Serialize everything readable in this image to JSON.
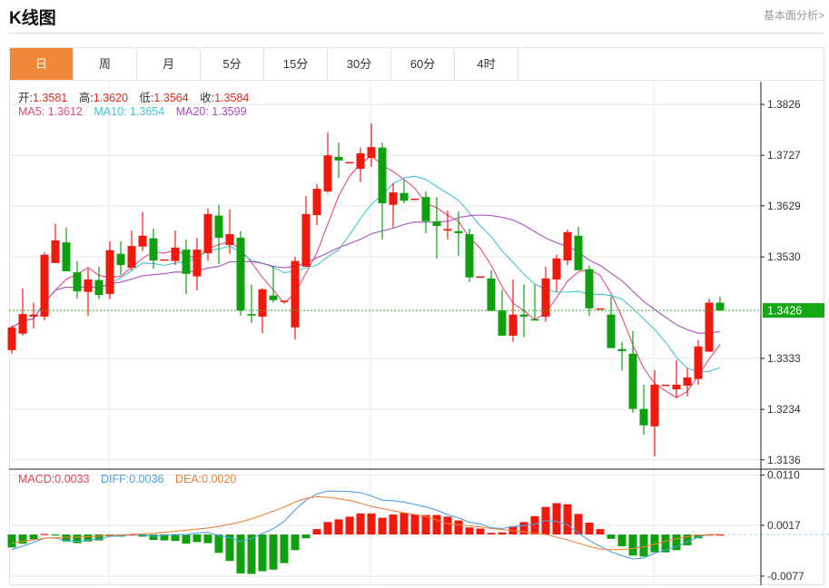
{
  "header": {
    "title": "K线图",
    "link": "基本面分析>"
  },
  "tabs": [
    {
      "label": "日",
      "active": true
    },
    {
      "label": "周"
    },
    {
      "label": "月"
    },
    {
      "label": "5分"
    },
    {
      "label": "15分"
    },
    {
      "label": "30分"
    },
    {
      "label": "60分"
    },
    {
      "label": "4时"
    }
  ],
  "info": {
    "open_label": "开:",
    "open": "1.3581",
    "high_label": "高:",
    "high": "1.3620",
    "low_label": "低:",
    "low": "1.3564",
    "close_label": "收:",
    "close": "1.3584",
    "ma5": "MA5: 1.3612",
    "ma10": "MA10: 1.3654",
    "ma20": "MA20: 1.3599"
  },
  "macd_info": {
    "macd": "MACD:0.0033",
    "diff": "DIFF:0.0036",
    "dea": "DEA:0.0020"
  },
  "colors": {
    "up": "#f0190c",
    "down": "#0ea00e",
    "ma5": "#e8477f",
    "ma10": "#45c3d6",
    "ma20": "#a94fc2",
    "diff": "#4d9fe3",
    "dea": "#f0813a",
    "active_tab": "#f0883a",
    "last_price_bg": "#15a815"
  },
  "chart_data": [
    {
      "type": "candlestick",
      "ohlc_order": [
        "open",
        "high",
        "low",
        "close"
      ],
      "candles": [
        [
          1.3349,
          1.3397,
          1.3342,
          1.3393
        ],
        [
          1.3381,
          1.3469,
          1.3377,
          1.3419
        ],
        [
          1.3414,
          1.3441,
          1.3391,
          1.3418
        ],
        [
          1.3414,
          1.3539,
          1.3407,
          1.3534
        ],
        [
          1.3518,
          1.3594,
          1.3518,
          1.3562
        ],
        [
          1.3558,
          1.3587,
          1.3502,
          1.3502
        ],
        [
          1.35,
          1.3522,
          1.3449,
          1.3463
        ],
        [
          1.3462,
          1.3507,
          1.3416,
          1.3486
        ],
        [
          1.3485,
          1.3511,
          1.3448,
          1.3456
        ],
        [
          1.3458,
          1.356,
          1.3448,
          1.3543
        ],
        [
          1.3536,
          1.356,
          1.3495,
          1.3514
        ],
        [
          1.3509,
          1.3581,
          1.3504,
          1.3551
        ],
        [
          1.355,
          1.3617,
          1.3541,
          1.3571
        ],
        [
          1.3566,
          1.3585,
          1.3507,
          1.3523
        ],
        [
          1.3523,
          1.3525,
          1.3523,
          1.3525
        ],
        [
          1.3522,
          1.3581,
          1.3514,
          1.3548
        ],
        [
          1.3544,
          1.3564,
          1.3458,
          1.3497
        ],
        [
          1.3492,
          1.3567,
          1.3465,
          1.3544
        ],
        [
          1.3537,
          1.3624,
          1.3523,
          1.3613
        ],
        [
          1.361,
          1.3631,
          1.3516,
          1.3567
        ],
        [
          1.3553,
          1.3622,
          1.3536,
          1.3574
        ],
        [
          1.3567,
          1.358,
          1.3416,
          1.3426
        ],
        [
          1.3419,
          1.3476,
          1.3402,
          1.3416
        ],
        [
          1.3414,
          1.3469,
          1.3382,
          1.3467
        ],
        [
          1.3455,
          1.3513,
          1.3441,
          1.3446
        ],
        [
          1.3444,
          1.3445,
          1.3444,
          1.3445
        ],
        [
          1.3393,
          1.353,
          1.337,
          1.3522
        ],
        [
          1.3511,
          1.3648,
          1.3511,
          1.3613
        ],
        [
          1.3611,
          1.3671,
          1.3592,
          1.3662
        ],
        [
          1.3657,
          1.3771,
          1.3654,
          1.3727
        ],
        [
          1.3724,
          1.3752,
          1.3683,
          1.3717
        ],
        [
          1.3713,
          1.3714,
          1.3713,
          1.3714
        ],
        [
          1.3701,
          1.3742,
          1.3675,
          1.3731
        ],
        [
          1.3722,
          1.3789,
          1.3705,
          1.3743
        ],
        [
          1.3742,
          1.3752,
          1.3564,
          1.3634
        ],
        [
          1.3631,
          1.3673,
          1.3587,
          1.3655
        ],
        [
          1.3654,
          1.368,
          1.3634,
          1.3639
        ],
        [
          1.3642,
          1.3643,
          1.3642,
          1.3643
        ],
        [
          1.3646,
          1.3657,
          1.3576,
          1.3599
        ],
        [
          1.3599,
          1.3646,
          1.3527,
          1.359
        ],
        [
          1.3581,
          1.362,
          1.3564,
          1.3584
        ],
        [
          1.358,
          1.3618,
          1.3532,
          1.3576
        ],
        [
          1.3574,
          1.3585,
          1.3481,
          1.349
        ],
        [
          1.3491,
          1.3492,
          1.3491,
          1.3492
        ],
        [
          1.3488,
          1.3504,
          1.3425,
          1.3425
        ],
        [
          1.3426,
          1.3467,
          1.3377,
          1.3377
        ],
        [
          1.3377,
          1.3486,
          1.3365,
          1.3418
        ],
        [
          1.3418,
          1.3476,
          1.3374,
          1.3414
        ],
        [
          1.3409,
          1.3476,
          1.3407,
          1.3407
        ],
        [
          1.3414,
          1.3511,
          1.3404,
          1.3488
        ],
        [
          1.3486,
          1.3534,
          1.3462,
          1.3527
        ],
        [
          1.3523,
          1.3583,
          1.3514,
          1.3578
        ],
        [
          1.3571,
          1.3588,
          1.3504,
          1.3504
        ],
        [
          1.3506,
          1.3513,
          1.3416,
          1.343
        ],
        [
          1.3429,
          1.343,
          1.3429,
          1.343
        ],
        [
          1.3418,
          1.3453,
          1.3353,
          1.3353
        ],
        [
          1.3351,
          1.3365,
          1.3309,
          1.3347
        ],
        [
          1.3342,
          1.3386,
          1.3228,
          1.3235
        ],
        [
          1.3235,
          1.3282,
          1.3185,
          1.3203
        ],
        [
          1.3201,
          1.331,
          1.3143,
          1.3282
        ],
        [
          1.3281,
          1.3282,
          1.3281,
          1.3282
        ],
        [
          1.3273,
          1.333,
          1.3256,
          1.3282
        ],
        [
          1.328,
          1.3314,
          1.3259,
          1.3296
        ],
        [
          1.3293,
          1.3368,
          1.3282,
          1.3356
        ],
        [
          1.3346,
          1.3449,
          1.3346,
          1.3441
        ],
        [
          1.3441,
          1.3453,
          1.3425,
          1.3426
        ]
      ],
      "moving_averages": [
        {
          "name": "MA5",
          "period": 5
        },
        {
          "name": "MA10",
          "period": 10
        },
        {
          "name": "MA20",
          "period": 20
        }
      ],
      "ylim": [
        1.3118,
        1.387
      ],
      "yticks": [
        "1.3826",
        "1.3727",
        "1.3629",
        "1.3530",
        "1.3333",
        "1.3234",
        "1.3136"
      ],
      "last_price": "1.3426",
      "grid": true
    },
    {
      "type": "bar+line",
      "macd": [
        -0.0024,
        -0.0017,
        -0.0009,
        0.0001,
        -0.0001,
        -0.0013,
        -0.0016,
        -0.0013,
        -0.0011,
        -0.0003,
        -0.0004,
        0.0,
        -0.0004,
        -0.001,
        -0.0011,
        -0.0012,
        -0.0017,
        -0.0014,
        -0.0016,
        -0.0034,
        -0.0049,
        -0.0072,
        -0.0073,
        -0.0068,
        -0.0065,
        -0.0053,
        -0.0029,
        -0.0007,
        0.001,
        0.0023,
        0.0028,
        0.0033,
        0.0039,
        0.0039,
        0.0031,
        0.0037,
        0.004,
        0.0037,
        0.0036,
        0.0036,
        0.0033,
        0.0026,
        0.0013,
        0.0011,
        0.0003,
        0.0004,
        0.0015,
        0.0023,
        0.0034,
        0.0051,
        0.0058,
        0.0056,
        0.0038,
        0.0022,
        0.001,
        -0.0008,
        -0.0022,
        -0.0039,
        -0.0041,
        -0.0033,
        -0.0033,
        -0.0029,
        -0.002,
        -0.0007,
        0.0,
        0.0
      ],
      "dea": [
        -0.0016,
        -0.0013,
        -0.001,
        -0.0007,
        -0.0006,
        -0.0005,
        -0.0005,
        -0.0004,
        -0.0003,
        -0.0002,
        -0.0001,
        0.0,
        0.0001,
        0.0002,
        0.0004,
        0.0006,
        0.0008,
        0.001,
        0.0012,
        0.0015,
        0.0019,
        0.0023,
        0.0029,
        0.0036,
        0.0043,
        0.0051,
        0.006,
        0.0067,
        0.007,
        0.0069,
        0.0066,
        0.0063,
        0.0058,
        0.0052,
        0.0048,
        0.0044,
        0.004,
        0.0037,
        0.0033,
        0.0027,
        0.002,
        0.0018,
        0.0016,
        0.0014,
        0.0011,
        0.0009,
        0.0007,
        0.0005,
        0.0002,
        0.0,
        -0.0005,
        -0.001,
        -0.0016,
        -0.0022,
        -0.0027,
        -0.0028,
        -0.0028,
        -0.0026,
        -0.0023,
        -0.0018,
        -0.0012,
        -0.0008,
        -0.0004,
        -0.0001,
        0.0,
        0.0
      ],
      "ylim": [
        -0.0094,
        0.0121
      ],
      "yticks": [
        "0.0110",
        "0.0017",
        "-0.0077"
      ],
      "grid": true
    }
  ]
}
